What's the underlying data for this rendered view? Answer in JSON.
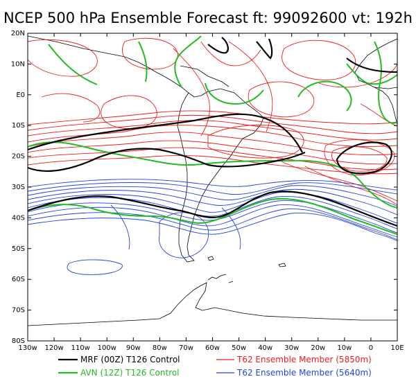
{
  "title": "NCEP 500 hPa Ensemble Forecast  ft: 99092600 vt: 192h",
  "map": {
    "lat_labels": [
      "20N",
      "10N",
      "E0",
      "10S",
      "20S",
      "30S",
      "40S",
      "50S",
      "60S",
      "70S",
      "80S"
    ],
    "lon_labels": [
      "130w",
      "120w",
      "110w",
      "100w",
      "90w",
      "80w",
      "70w",
      "60w",
      "50w",
      "40w",
      "30w",
      "20w",
      "10w",
      "0",
      "10E"
    ]
  },
  "legend": [
    {
      "label": "MRF (00Z) T126 Control",
      "color": "#000000"
    },
    {
      "label": "AVN (12Z) T126 Control",
      "color": "#22bb22"
    },
    {
      "label": "T62 Ensemble Member (5850m)",
      "color": "#ee1c1c"
    },
    {
      "label": "T62 Ensemble Member (5640m)",
      "color": "#2244dd"
    }
  ],
  "colors": {
    "coast": "#000000",
    "frame": "#000000",
    "background": "#ffffff"
  }
}
